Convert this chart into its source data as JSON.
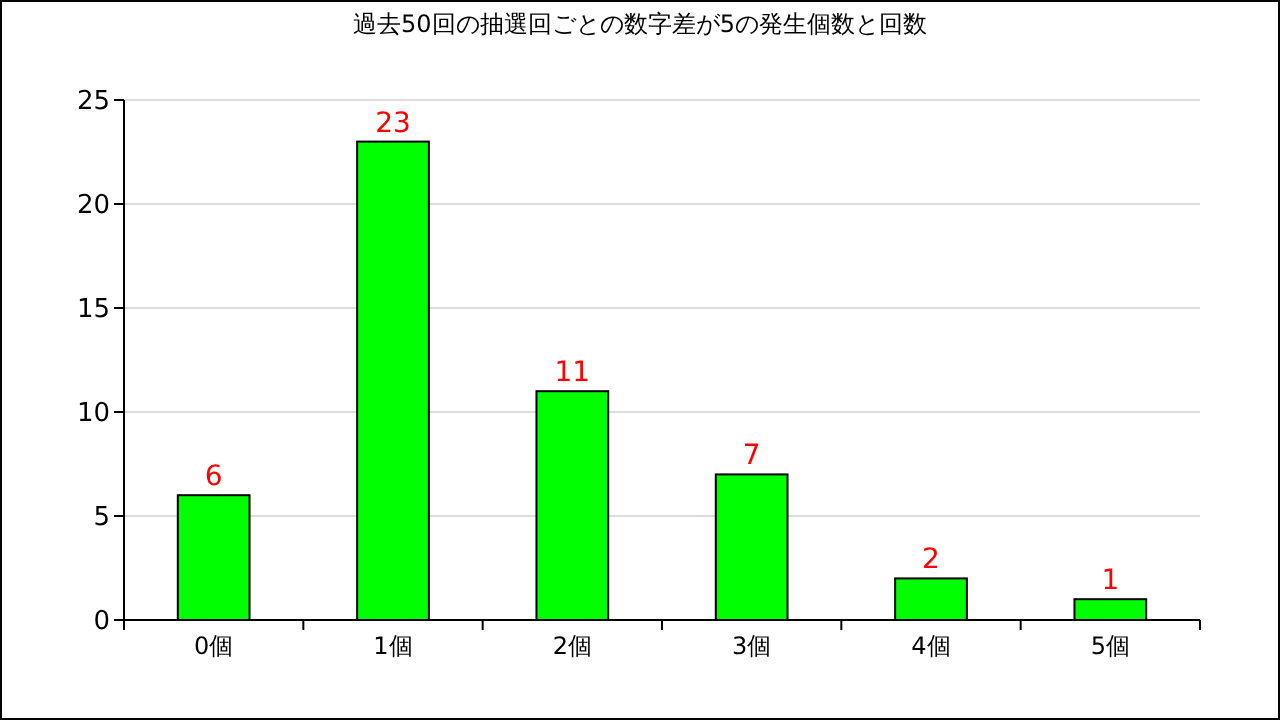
{
  "chart_data": {
    "type": "bar",
    "title": "過去50回の抽選回ごとの数字差が5の発生個数と回数",
    "categories": [
      "0個",
      "1個",
      "2個",
      "3個",
      "4個",
      "5個"
    ],
    "values": [
      6,
      23,
      11,
      7,
      2,
      1
    ],
    "color": "#00ff00",
    "ylim": [
      0,
      25
    ],
    "yticks": [
      0,
      5,
      10,
      15,
      20,
      25
    ],
    "grid": "y",
    "data_labels": true
  }
}
